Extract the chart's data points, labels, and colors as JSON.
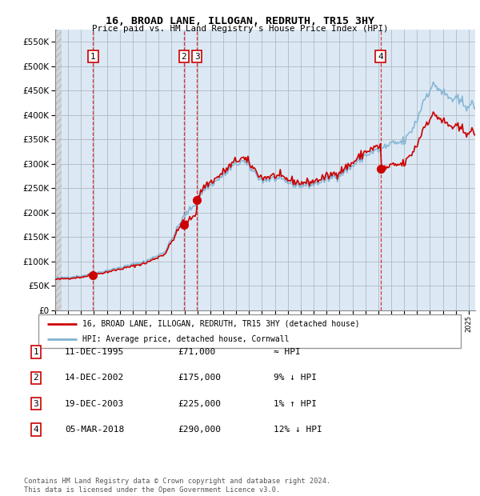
{
  "title": "16, BROAD LANE, ILLOGAN, REDRUTH, TR15 3HY",
  "subtitle": "Price paid vs. HM Land Registry's House Price Index (HPI)",
  "background_color": "#dce9f5",
  "sale_dates_num": [
    1995.94,
    2002.95,
    2003.97,
    2018.17
  ],
  "sale_prices": [
    71000,
    175000,
    225000,
    290000
  ],
  "sale_labels": [
    "1",
    "2",
    "3",
    "4"
  ],
  "legend_label_red": "16, BROAD LANE, ILLOGAN, REDRUTH, TR15 3HY (detached house)",
  "legend_label_blue": "HPI: Average price, detached house, Cornwall",
  "table_data": [
    [
      "1",
      "11-DEC-1995",
      "£71,000",
      "≈ HPI"
    ],
    [
      "2",
      "14-DEC-2002",
      "£175,000",
      "9% ↓ HPI"
    ],
    [
      "3",
      "19-DEC-2003",
      "£225,000",
      "1% ↑ HPI"
    ],
    [
      "4",
      "05-MAR-2018",
      "£290,000",
      "12% ↓ HPI"
    ]
  ],
  "footnote": "Contains HM Land Registry data © Crown copyright and database right 2024.\nThis data is licensed under the Open Government Licence v3.0.",
  "xlim_start": 1993.0,
  "xlim_end": 2025.5,
  "ylim": [
    0,
    575000
  ],
  "yticks": [
    0,
    50000,
    100000,
    150000,
    200000,
    250000,
    300000,
    350000,
    400000,
    450000,
    500000,
    550000
  ],
  "red_line_color": "#cc0000",
  "blue_line_color": "#7fb3d3",
  "hatch_end": 1993.5
}
